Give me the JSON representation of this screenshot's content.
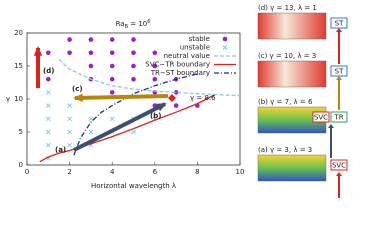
{
  "chart_data": {
    "type": "scatter",
    "title": {
      "base": "Ra",
      "sub": "B",
      "mid": " = 10",
      "sup": "6"
    },
    "xlabel": "Horizontal wavelength λ",
    "ylabel": "γ",
    "xlim": [
      0,
      10
    ],
    "xticks": [
      0,
      2,
      4,
      6,
      8,
      10
    ],
    "ylim": [
      0,
      20
    ],
    "yticks": [
      0,
      5,
      10,
      15,
      20
    ],
    "legend": "upper right",
    "series": [
      {
        "name": "stable",
        "kind": "marker",
        "marker": "circle",
        "color": "#9a1fd0",
        "x": [
          2,
          3,
          4,
          5,
          1,
          2,
          3,
          4,
          5,
          6,
          3,
          4,
          5,
          6,
          1,
          3,
          4,
          5,
          6,
          7,
          4,
          6,
          7,
          6,
          7,
          8
        ],
        "values": [
          19,
          19,
          19,
          19,
          17,
          17,
          17,
          17,
          17,
          17,
          15,
          15,
          15,
          15,
          13,
          13,
          13,
          13,
          13,
          13,
          11,
          11,
          11,
          9,
          9,
          9
        ]
      },
      {
        "name": "unstable",
        "kind": "marker",
        "marker": "x",
        "color": "#7ec8e3",
        "x": [
          1,
          1,
          1,
          1,
          1,
          1,
          2,
          2,
          2,
          2,
          3,
          3,
          3,
          4,
          4,
          5,
          5,
          6
        ],
        "values": [
          1,
          3,
          5,
          7,
          9,
          11,
          3,
          5,
          7,
          9,
          3,
          5,
          7,
          5,
          7,
          5,
          7,
          7
        ]
      },
      {
        "name": "neutral value",
        "kind": "line",
        "style": "dashed",
        "color": "#8fc7e8",
        "x": [
          1.5,
          2,
          3,
          4,
          5,
          6,
          8,
          10
        ],
        "values": [
          16,
          14.5,
          13,
          12,
          11.5,
          11.2,
          10.8,
          10.5
        ]
      },
      {
        "name": "SVC−TR boundary",
        "kind": "line",
        "style": "solid",
        "color": "#e0201b",
        "x": [
          0.6,
          1,
          1.5,
          2,
          3,
          4,
          5,
          6,
          7,
          8,
          8.8
        ],
        "values": [
          0.5,
          1.2,
          1.8,
          2.2,
          3.2,
          4.3,
          5.5,
          6.8,
          8,
          9.3,
          10.6
        ]
      },
      {
        "name": "TR−ST boundary",
        "kind": "line",
        "style": "dashdot",
        "color": "#1a2f9c",
        "x": [
          2.2,
          2.5,
          3,
          3.5,
          4,
          5,
          6,
          7,
          8
        ],
        "values": [
          1.5,
          4,
          6.5,
          8,
          9,
          10.8,
          12,
          13,
          13.8
        ]
      }
    ],
    "annotations": [
      "(a)",
      "(b)",
      "(c)",
      "(d)",
      "γ = 8.6"
    ]
  },
  "panels": [
    {
      "label": "(d) γ = 13, λ = 1",
      "tags": [
        "ST"
      ]
    },
    {
      "label": "(c) γ = 10, λ = 3",
      "tags": [
        "ST"
      ]
    },
    {
      "label": "(b) γ = 7, λ = 6",
      "tags": [
        "SVC",
        "TR"
      ]
    },
    {
      "label": "(a) γ = 3, λ = 3",
      "tags": [
        "SVC"
      ]
    }
  ]
}
